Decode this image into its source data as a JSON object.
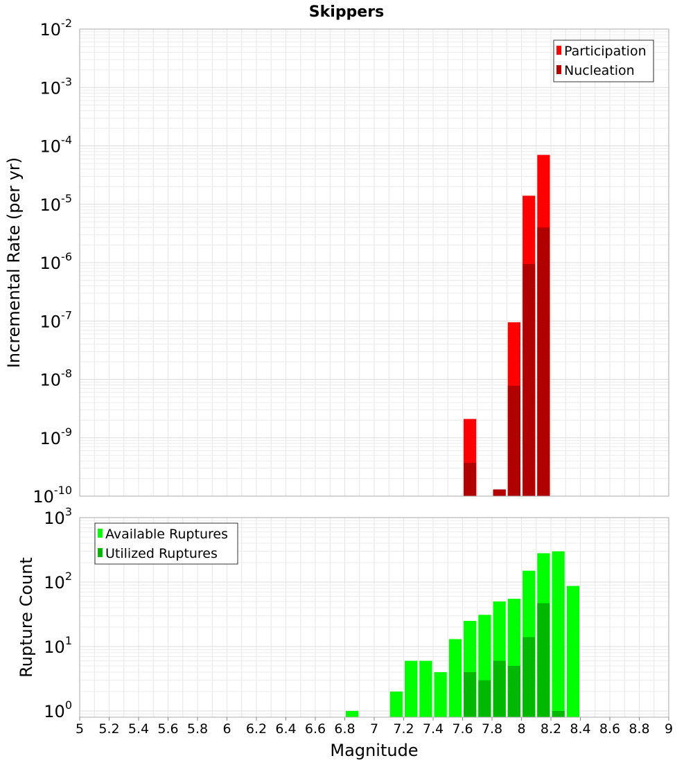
{
  "chart_data": [
    {
      "type": "bar",
      "title": "Skippers",
      "xlabel": "",
      "ylabel": "Incremental Rate (per yr)",
      "y_scale": "log",
      "ylim": [
        1e-10,
        0.01
      ],
      "xlim": [
        5,
        9
      ],
      "grid": true,
      "legend_position": "top-right",
      "series": [
        {
          "name": "Participation",
          "color": "#ff0000",
          "points": [
            {
              "x": 7.65,
              "y": 2.1e-09
            },
            {
              "x": 7.85,
              "y": 1.3e-10
            },
            {
              "x": 7.95,
              "y": 9.5e-08
            },
            {
              "x": 8.05,
              "y": 1.4e-05
            },
            {
              "x": 8.15,
              "y": 7e-05
            }
          ]
        },
        {
          "name": "Nucleation",
          "color": "#b00000",
          "points": [
            {
              "x": 7.65,
              "y": 3.7e-10
            },
            {
              "x": 7.85,
              "y": 1.3e-10
            },
            {
              "x": 7.95,
              "y": 7.8e-09
            },
            {
              "x": 8.05,
              "y": 9.5e-07
            },
            {
              "x": 8.15,
              "y": 4e-06
            }
          ]
        }
      ],
      "y_ticks": [
        {
          "value": 0.01,
          "base": "10",
          "exp": "-2"
        },
        {
          "value": 0.001,
          "base": "10",
          "exp": "-3"
        },
        {
          "value": 0.0001,
          "base": "10",
          "exp": "-4"
        },
        {
          "value": 1e-05,
          "base": "10",
          "exp": "-5"
        },
        {
          "value": 1e-06,
          "base": "10",
          "exp": "-6"
        },
        {
          "value": 1e-07,
          "base": "10",
          "exp": "-7"
        },
        {
          "value": 1e-08,
          "base": "10",
          "exp": "-8"
        },
        {
          "value": 1e-09,
          "base": "10",
          "exp": "-9"
        },
        {
          "value": 1e-10,
          "base": "10",
          "exp": "-10"
        }
      ]
    },
    {
      "type": "bar",
      "title": "",
      "xlabel": "Magnitude",
      "ylabel": "Rupture Count",
      "y_scale": "log",
      "ylim": [
        0.8,
        1000
      ],
      "xlim": [
        5,
        9
      ],
      "grid": true,
      "legend_position": "top-left",
      "series": [
        {
          "name": "Available Ruptures",
          "color": "#00ff00",
          "points": [
            {
              "x": 6.85,
              "y": 1
            },
            {
              "x": 7.15,
              "y": 2
            },
            {
              "x": 7.25,
              "y": 6
            },
            {
              "x": 7.35,
              "y": 6
            },
            {
              "x": 7.45,
              "y": 4
            },
            {
              "x": 7.55,
              "y": 13
            },
            {
              "x": 7.65,
              "y": 25
            },
            {
              "x": 7.75,
              "y": 31
            },
            {
              "x": 7.85,
              "y": 50
            },
            {
              "x": 7.95,
              "y": 55
            },
            {
              "x": 8.05,
              "y": 150
            },
            {
              "x": 8.15,
              "y": 280
            },
            {
              "x": 8.25,
              "y": 300
            },
            {
              "x": 8.35,
              "y": 87
            }
          ]
        },
        {
          "name": "Utilized Ruptures",
          "color": "#00b800",
          "points": [
            {
              "x": 7.65,
              "y": 4
            },
            {
              "x": 7.75,
              "y": 3
            },
            {
              "x": 7.85,
              "y": 6
            },
            {
              "x": 7.95,
              "y": 5
            },
            {
              "x": 8.05,
              "y": 14
            },
            {
              "x": 8.15,
              "y": 47
            },
            {
              "x": 8.25,
              "y": 1
            }
          ]
        }
      ],
      "y_ticks": [
        {
          "value": 1000,
          "base": "10",
          "exp": "3"
        },
        {
          "value": 100,
          "base": "10",
          "exp": "2"
        },
        {
          "value": 10,
          "base": "10",
          "exp": "1"
        },
        {
          "value": 1,
          "base": "10",
          "exp": "0"
        }
      ],
      "x_ticks": [
        "5",
        "5.2",
        "5.4",
        "5.6",
        "5.8",
        "6",
        "6.2",
        "6.4",
        "6.6",
        "6.8",
        "7",
        "7.2",
        "7.4",
        "7.6",
        "7.8",
        "8",
        "8.2",
        "8.4",
        "8.6",
        "8.8",
        "9"
      ]
    }
  ]
}
